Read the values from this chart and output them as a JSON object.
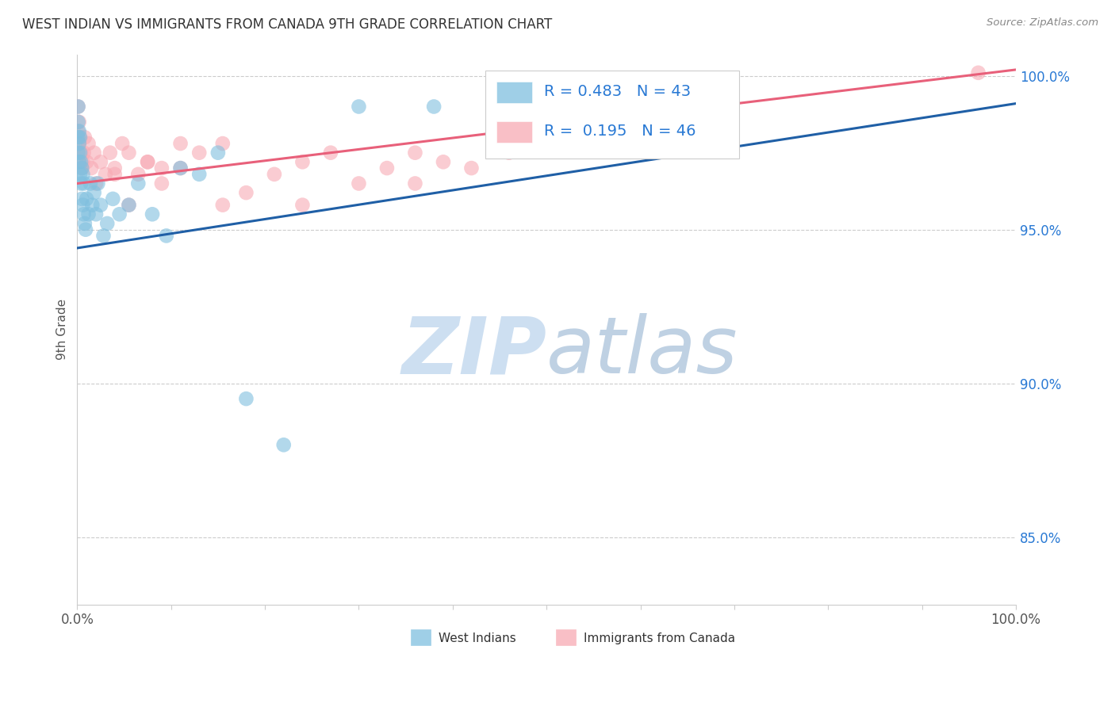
{
  "title": "WEST INDIAN VS IMMIGRANTS FROM CANADA 9TH GRADE CORRELATION CHART",
  "source": "Source: ZipAtlas.com",
  "ylabel": "9th Grade",
  "yaxis_labels": [
    "100.0%",
    "95.0%",
    "90.0%",
    "85.0%"
  ],
  "yaxis_values": [
    1.0,
    0.95,
    0.9,
    0.85
  ],
  "blue_R": 0.483,
  "blue_N": 43,
  "pink_R": 0.195,
  "pink_N": 46,
  "blue_color": "#7fbfdf",
  "pink_color": "#f8aab4",
  "blue_line_color": "#1f5fa6",
  "pink_line_color": "#e8607a",
  "legend_label_blue": "West Indians",
  "legend_label_pink": "Immigrants from Canada",
  "blue_scatter_x": [
    0.001,
    0.001,
    0.001,
    0.001,
    0.002,
    0.002,
    0.002,
    0.003,
    0.003,
    0.003,
    0.004,
    0.004,
    0.005,
    0.005,
    0.006,
    0.006,
    0.007,
    0.007,
    0.008,
    0.009,
    0.01,
    0.012,
    0.014,
    0.016,
    0.018,
    0.02,
    0.022,
    0.025,
    0.028,
    0.032,
    0.038,
    0.045,
    0.055,
    0.065,
    0.08,
    0.095,
    0.11,
    0.13,
    0.15,
    0.18,
    0.22,
    0.3,
    0.38
  ],
  "blue_scatter_y": [
    0.975,
    0.98,
    0.985,
    0.99,
    0.972,
    0.978,
    0.982,
    0.968,
    0.975,
    0.98,
    0.965,
    0.972,
    0.96,
    0.97,
    0.958,
    0.968,
    0.955,
    0.965,
    0.952,
    0.95,
    0.96,
    0.955,
    0.965,
    0.958,
    0.962,
    0.955,
    0.965,
    0.958,
    0.948,
    0.952,
    0.96,
    0.955,
    0.958,
    0.965,
    0.955,
    0.948,
    0.97,
    0.968,
    0.975,
    0.895,
    0.88,
    0.99,
    0.99
  ],
  "pink_scatter_x": [
    0.001,
    0.001,
    0.002,
    0.002,
    0.003,
    0.004,
    0.005,
    0.006,
    0.007,
    0.008,
    0.01,
    0.012,
    0.015,
    0.018,
    0.02,
    0.025,
    0.03,
    0.035,
    0.04,
    0.048,
    0.055,
    0.065,
    0.075,
    0.09,
    0.11,
    0.13,
    0.155,
    0.18,
    0.21,
    0.24,
    0.27,
    0.3,
    0.33,
    0.36,
    0.04,
    0.055,
    0.075,
    0.09,
    0.11,
    0.155,
    0.24,
    0.36,
    0.39,
    0.42,
    0.46,
    0.96
  ],
  "pink_scatter_y": [
    0.99,
    0.982,
    0.985,
    0.978,
    0.98,
    0.975,
    0.97,
    0.972,
    0.975,
    0.98,
    0.972,
    0.978,
    0.97,
    0.975,
    0.965,
    0.972,
    0.968,
    0.975,
    0.97,
    0.978,
    0.975,
    0.968,
    0.972,
    0.97,
    0.978,
    0.975,
    0.958,
    0.962,
    0.968,
    0.972,
    0.975,
    0.965,
    0.97,
    0.975,
    0.968,
    0.958,
    0.972,
    0.965,
    0.97,
    0.978,
    0.958,
    0.965,
    0.972,
    0.97,
    0.975,
    1.001
  ],
  "blue_line_y_start": 0.944,
  "blue_line_y_end": 0.991,
  "pink_line_y_start": 0.965,
  "pink_line_y_end": 1.002,
  "xlim": [
    0.0,
    1.0
  ],
  "ylim": [
    0.828,
    1.007
  ]
}
